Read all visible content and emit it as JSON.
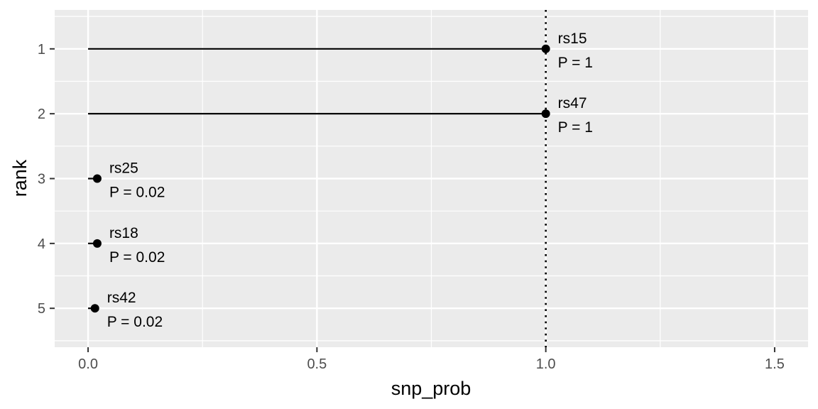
{
  "chart_data": {
    "type": "lollipop",
    "xlabel": "snp_prob",
    "ylabel": "rank",
    "xlim": [
      -0.073,
      1.573
    ],
    "ylim": [
      0.4,
      5.6
    ],
    "x_ticks": [
      "0.0",
      "0.5",
      "1.0",
      "1.5"
    ],
    "x_tick_values": [
      0,
      0.5,
      1.0,
      1.5
    ],
    "y_ticks": [
      "1",
      "2",
      "3",
      "4",
      "5"
    ],
    "y_tick_values": [
      1,
      2,
      3,
      4,
      5
    ],
    "y_reversed": true,
    "reference_line": {
      "x": 1.0,
      "style": "dotted"
    },
    "grid": true,
    "panel_background": "#ebebeb",
    "grid_color": "#ffffff",
    "points": [
      {
        "rank": 1,
        "snp": "rs15",
        "prob": 1.0,
        "p_label": "P = 1"
      },
      {
        "rank": 2,
        "snp": "rs47",
        "prob": 1.0,
        "p_label": "P = 1"
      },
      {
        "rank": 3,
        "snp": "rs25",
        "prob": 0.02,
        "p_label": "P = 0.02"
      },
      {
        "rank": 4,
        "snp": "rs18",
        "prob": 0.02,
        "p_label": "P = 0.02"
      },
      {
        "rank": 5,
        "snp": "rs42",
        "prob": 0.015,
        "p_label": "P = 0.02"
      }
    ]
  }
}
